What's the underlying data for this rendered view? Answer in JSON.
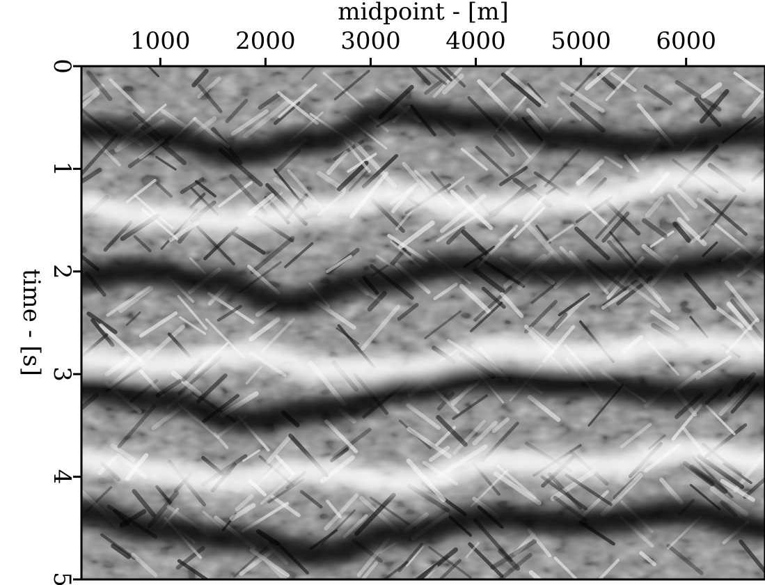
{
  "colors": {
    "background": "#ffffff",
    "axis": "#000000",
    "colormap_low": "#000000",
    "colormap_high": "#ffffff"
  },
  "chart_data": {
    "type": "heatmap",
    "colormap": "grayscale",
    "xlabel": "midpoint - [m]",
    "ylabel": "time - [s]",
    "x_axis_position": "top",
    "xlim": [
      250,
      6750
    ],
    "ylim": [
      0,
      5
    ],
    "y_inverted": true,
    "grid": false,
    "legend": "none",
    "xticks": [
      1000,
      2000,
      3000,
      4000,
      5000,
      6000
    ],
    "xtick_labels": [
      "1000",
      "2000",
      "3000",
      "4000",
      "5000",
      "6000"
    ],
    "yticks": [
      0,
      1,
      2,
      3,
      4,
      5
    ],
    "ytick_labels": [
      "0",
      "1",
      "2",
      "3",
      "4",
      "5"
    ],
    "ytick_label_orientation": "rotated-90",
    "horizons": [
      {
        "polarity": "dark",
        "x": [
          250,
          1000,
          1700,
          2500,
          3200,
          4100,
          4800,
          5600,
          6750
        ],
        "t": [
          0.62,
          0.68,
          0.85,
          0.72,
          0.45,
          0.55,
          0.7,
          0.78,
          0.65
        ]
      },
      {
        "polarity": "bright",
        "x": [
          250,
          800,
          1700,
          2600,
          3200,
          4000,
          5000,
          6000,
          6750
        ],
        "t": [
          1.35,
          1.45,
          1.5,
          1.4,
          1.25,
          1.38,
          1.3,
          1.1,
          1.15
        ]
      },
      {
        "polarity": "dark",
        "x": [
          250,
          800,
          1500,
          2200,
          3000,
          3800,
          4700,
          5500,
          6750
        ],
        "t": [
          2.05,
          2.0,
          2.1,
          2.3,
          2.1,
          1.95,
          2.0,
          2.0,
          1.9
        ]
      },
      {
        "polarity": "bright",
        "x": [
          250,
          1000,
          1800,
          2600,
          3400,
          4200,
          5000,
          6000,
          6750
        ],
        "t": [
          2.85,
          2.9,
          2.8,
          2.95,
          2.95,
          2.75,
          2.8,
          2.7,
          2.75
        ]
      },
      {
        "polarity": "dark",
        "x": [
          250,
          1000,
          1800,
          2600,
          3400,
          4000,
          5000,
          6000,
          6750
        ],
        "t": [
          3.15,
          3.25,
          3.45,
          3.35,
          3.15,
          3.05,
          3.1,
          3.2,
          3.1
        ]
      },
      {
        "polarity": "bright",
        "x": [
          250,
          1000,
          1600,
          2400,
          3300,
          4200,
          5200,
          6000,
          6750
        ],
        "t": [
          3.85,
          3.95,
          4.05,
          3.95,
          4.05,
          3.85,
          3.9,
          3.75,
          3.85
        ]
      },
      {
        "polarity": "dark",
        "x": [
          250,
          900,
          1700,
          2500,
          3300,
          4100,
          5000,
          6000,
          6750
        ],
        "t": [
          4.35,
          4.5,
          4.6,
          4.75,
          4.55,
          4.4,
          4.45,
          4.35,
          4.5
        ]
      }
    ]
  }
}
